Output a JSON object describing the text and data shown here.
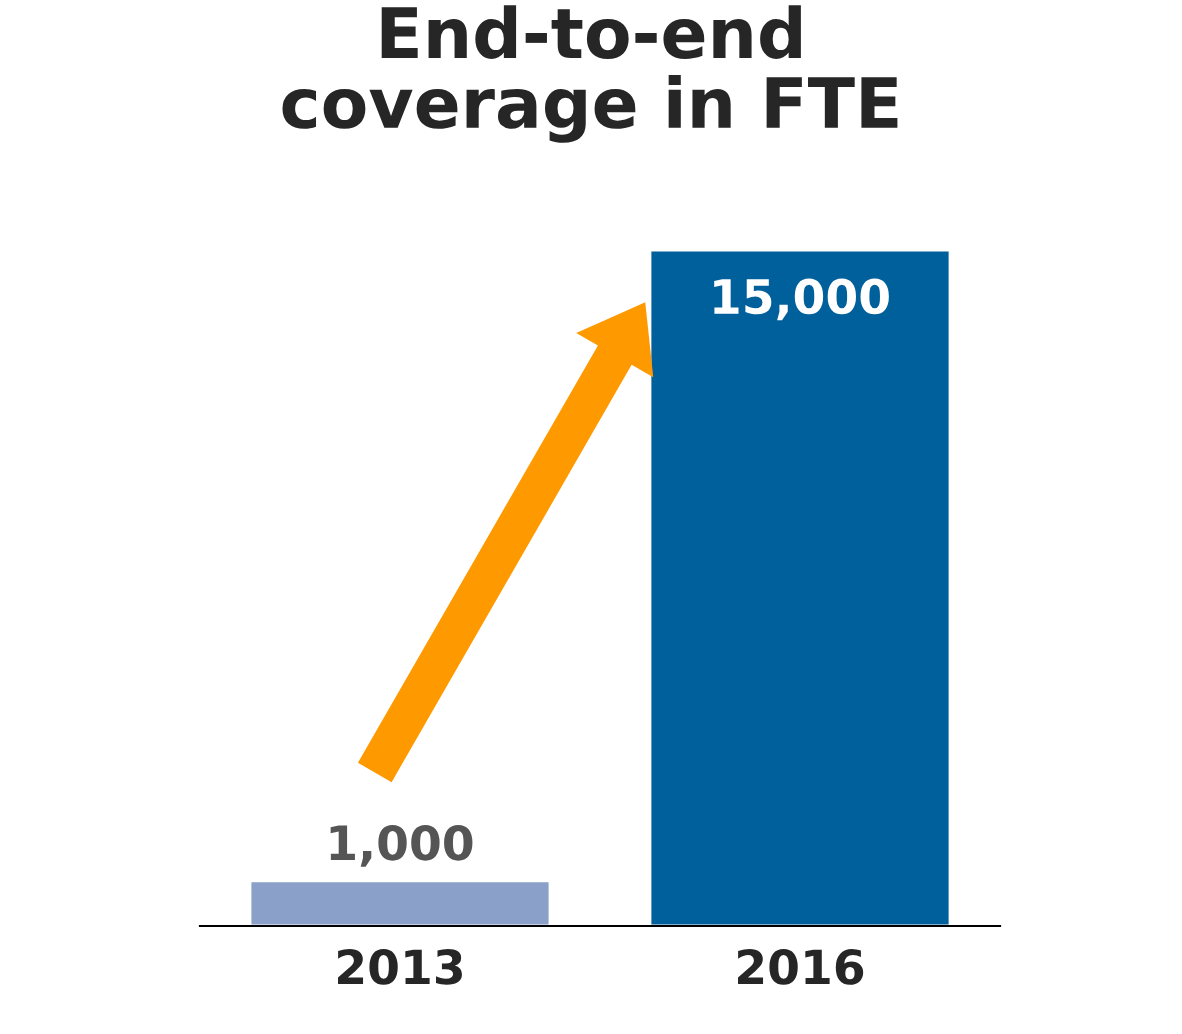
{
  "chart_data": {
    "type": "bar",
    "title": "End-to-end\ncoverage in FTE",
    "categories": [
      "2013",
      "2016"
    ],
    "values": [
      1000,
      15000
    ],
    "colors": [
      "#8aa0c8",
      "#00609c"
    ],
    "value_labels": [
      "1,000",
      "15,000"
    ],
    "grid": false,
    "legend": false
  }
}
